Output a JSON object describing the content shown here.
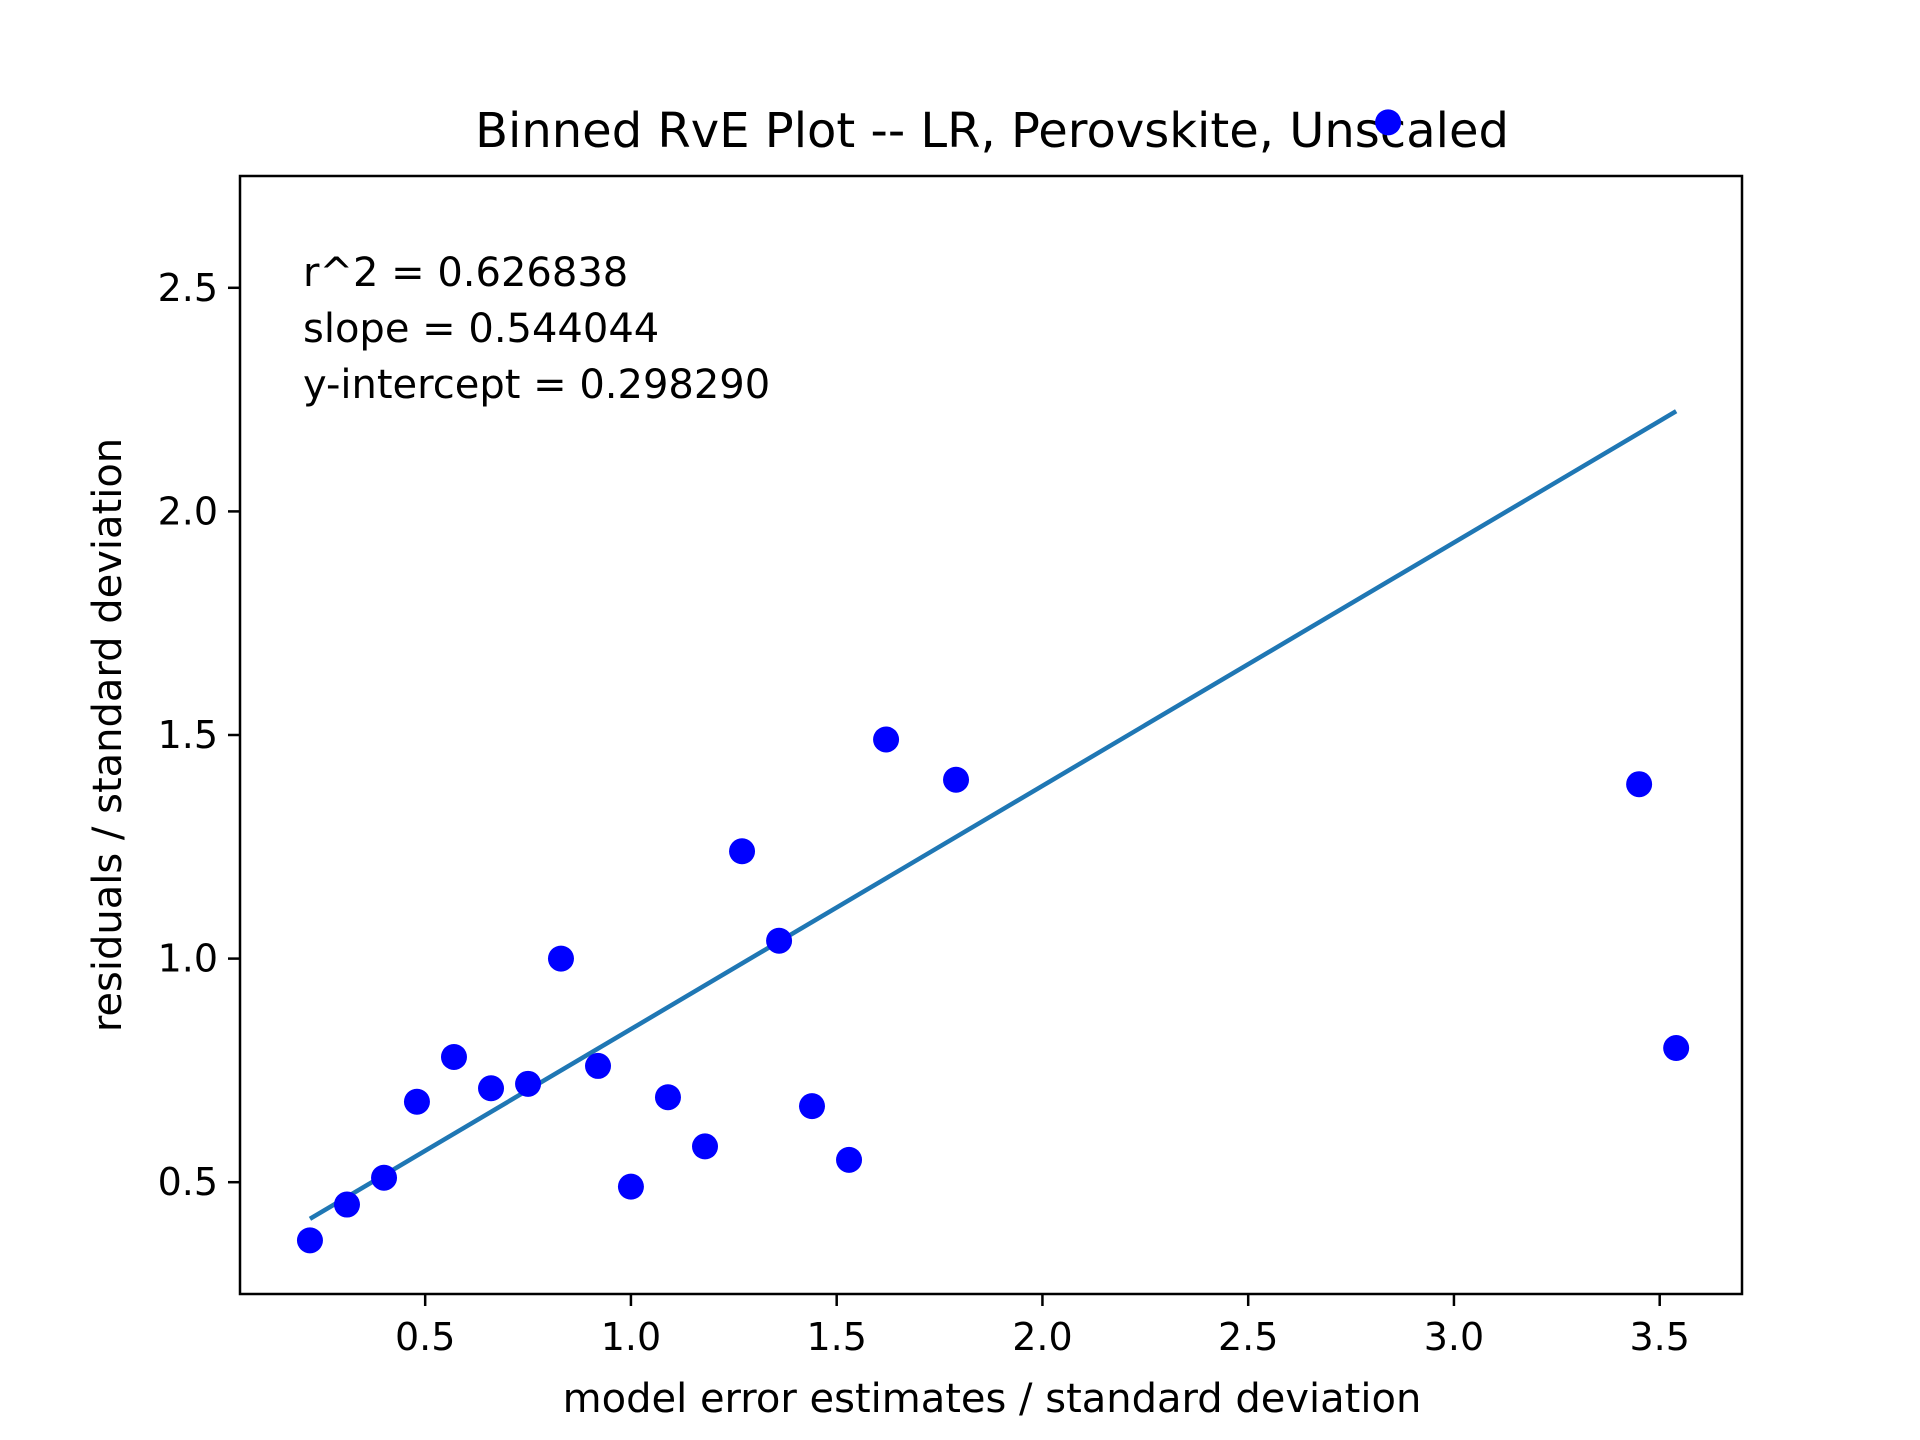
{
  "chart_data": {
    "type": "scatter",
    "title": "Binned RvE Plot -- LR, Perovskite, Unscaled",
    "xlabel": "model error estimates / standard deviation",
    "ylabel": "residuals / standard deviation",
    "xlim": [
      0.05,
      3.7
    ],
    "ylim": [
      0.25,
      2.75
    ],
    "xticks": [
      0.5,
      1.0,
      1.5,
      2.0,
      2.5,
      3.0,
      3.5
    ],
    "xtick_labels": [
      "0.5",
      "1.0",
      "1.5",
      "2.0",
      "2.5",
      "3.0",
      "3.5"
    ],
    "yticks": [
      0.5,
      1.0,
      1.5,
      2.0,
      2.5
    ],
    "ytick_labels": [
      "0.5",
      "1.0",
      "1.5",
      "2.0",
      "2.5"
    ],
    "grid": false,
    "annotations": [
      "r^2 = 0.626838",
      "slope = 0.544044",
      "y-intercept = 0.298290"
    ],
    "colors": {
      "points": "#0000ff",
      "fit_line": "#1f77b4"
    },
    "points": [
      {
        "x": 0.22,
        "y": 0.37
      },
      {
        "x": 0.31,
        "y": 0.45
      },
      {
        "x": 0.4,
        "y": 0.51
      },
      {
        "x": 0.48,
        "y": 0.68
      },
      {
        "x": 0.57,
        "y": 0.78
      },
      {
        "x": 0.66,
        "y": 0.71
      },
      {
        "x": 0.75,
        "y": 0.72
      },
      {
        "x": 0.83,
        "y": 1.0
      },
      {
        "x": 0.92,
        "y": 0.76
      },
      {
        "x": 1.0,
        "y": 0.49
      },
      {
        "x": 1.09,
        "y": 0.69
      },
      {
        "x": 1.18,
        "y": 0.58
      },
      {
        "x": 1.27,
        "y": 1.24
      },
      {
        "x": 1.36,
        "y": 1.04
      },
      {
        "x": 1.44,
        "y": 0.67
      },
      {
        "x": 1.53,
        "y": 0.55
      },
      {
        "x": 1.62,
        "y": 1.49
      },
      {
        "x": 1.79,
        "y": 1.4
      },
      {
        "x": 2.84,
        "y": 2.87
      },
      {
        "x": 3.45,
        "y": 1.39
      },
      {
        "x": 3.54,
        "y": 0.8
      }
    ],
    "fit_line": {
      "x": [
        0.22,
        3.54
      ],
      "y": [
        0.418,
        2.224
      ]
    }
  }
}
